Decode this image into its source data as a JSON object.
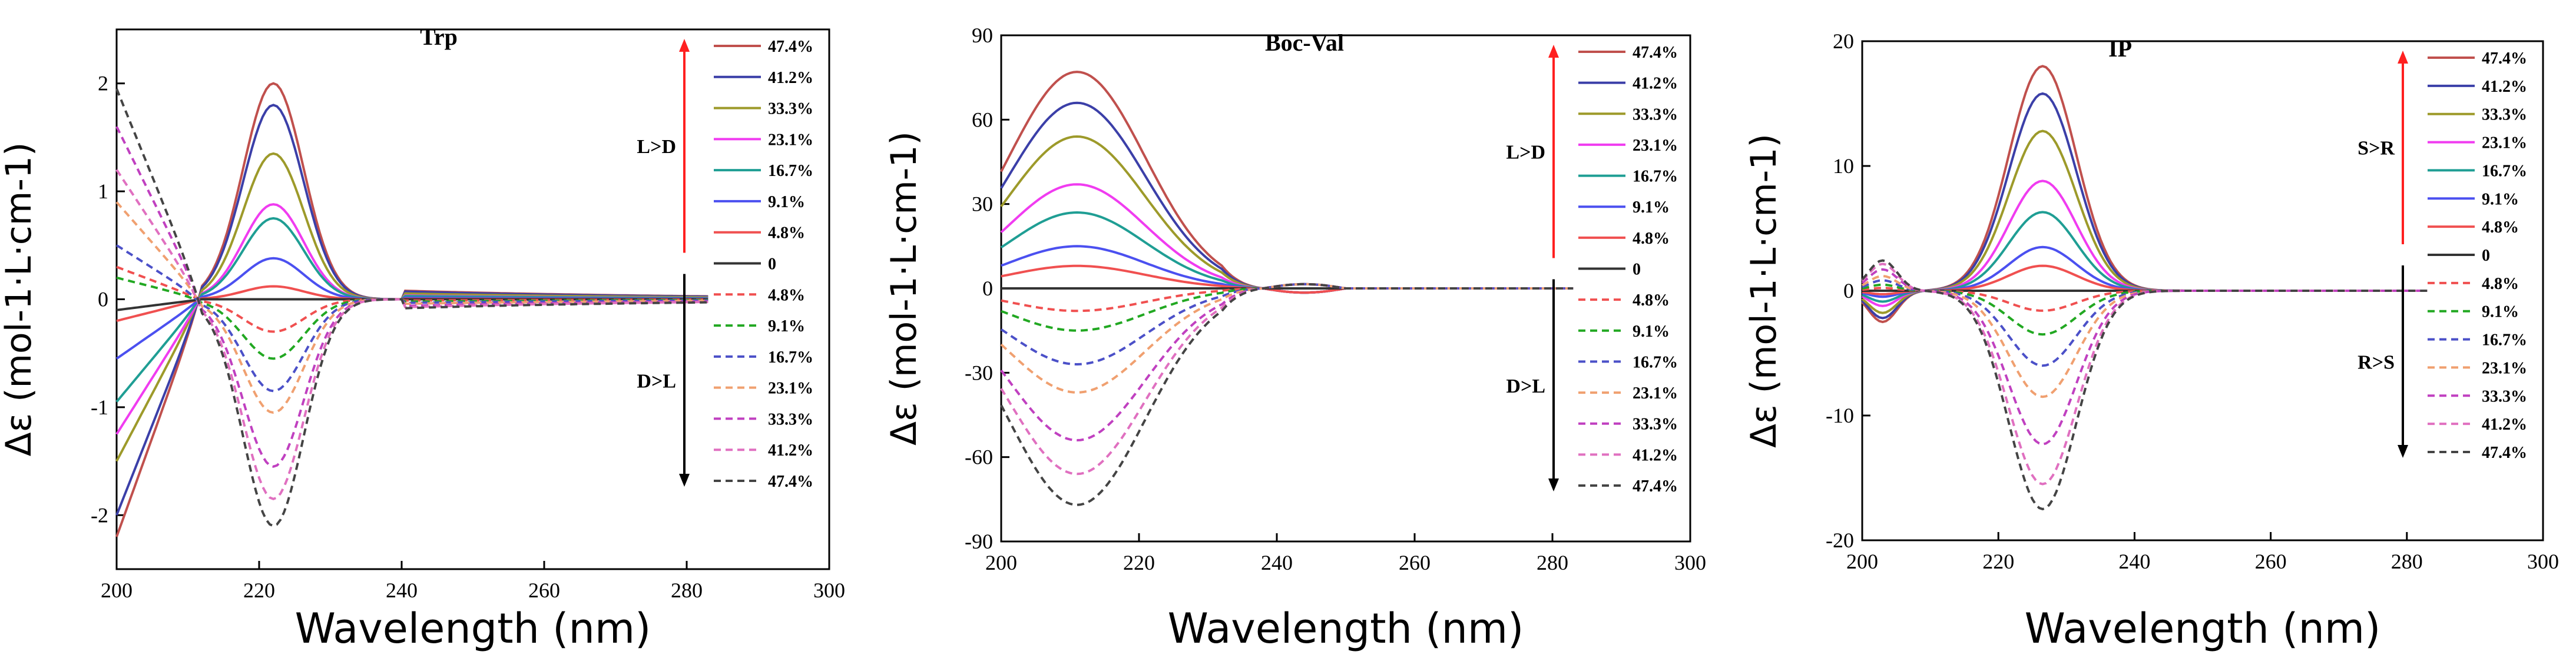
{
  "chart_data": [
    {
      "type": "line",
      "title": "Trp",
      "xlabel": "Wavelength (nm)",
      "ylabel": "Δε (mol-1·L·cm-1)",
      "xlim": [
        200,
        300
      ],
      "ylim": [
        -2.5,
        2.5
      ],
      "xticks": [
        200,
        220,
        240,
        260,
        280,
        300
      ],
      "xtick_labels": [
        "200",
        "220",
        "240",
        "260",
        "280",
        "300"
      ],
      "yticks": [
        -2,
        -1,
        0,
        1,
        2
      ],
      "ytick_labels": [
        "-2",
        "-1",
        "0",
        "1",
        "2"
      ],
      "arrow_up_label": "L>D",
      "arrow_down_label": "D>L",
      "peak_x": 222,
      "peak_width": 6,
      "x_end": 283,
      "legend": [
        "47.4%",
        "41.2%",
        "33.3%",
        "23.1%",
        "16.7%",
        "9.1%",
        "4.8%",
        "0",
        "4.8%",
        "9.1%",
        "16.7%",
        "23.1%",
        "33.3%",
        "41.2%",
        "47.4%"
      ],
      "series": [
        {
          "name": "47.4%",
          "style": "solid",
          "color": "#c0504d",
          "peak": 2.0,
          "start": -2.2
        },
        {
          "name": "41.2%",
          "style": "solid",
          "color": "#3b3fa8",
          "peak": 1.8,
          "start": -2.0
        },
        {
          "name": "33.3%",
          "style": "solid",
          "color": "#9d9a2a",
          "peak": 1.35,
          "start": -1.5
        },
        {
          "name": "23.1%",
          "style": "solid",
          "color": "#f03cf0",
          "peak": 0.88,
          "start": -1.25
        },
        {
          "name": "16.7%",
          "style": "solid",
          "color": "#1f9e94",
          "peak": 0.75,
          "start": -0.95
        },
        {
          "name": "9.1%",
          "style": "solid",
          "color": "#4b50f0",
          "peak": 0.38,
          "start": -0.55
        },
        {
          "name": "4.8%",
          "style": "solid",
          "color": "#f05050",
          "peak": 0.12,
          "start": -0.2
        },
        {
          "name": "0",
          "style": "solid",
          "color": "#333333",
          "peak": 0.0,
          "start": -0.1
        },
        {
          "name": "4.8%",
          "style": "dashed",
          "color": "#f05050",
          "peak": -0.3,
          "start": 0.3
        },
        {
          "name": "9.1%",
          "style": "dashed",
          "color": "#22a822",
          "peak": -0.55,
          "start": 0.2
        },
        {
          "name": "16.7%",
          "style": "dashed",
          "color": "#4b50c8",
          "peak": -0.85,
          "start": 0.5
        },
        {
          "name": "23.1%",
          "style": "dashed",
          "color": "#f0a070",
          "peak": -1.05,
          "start": 0.9
        },
        {
          "name": "33.3%",
          "style": "dashed",
          "color": "#c040c0",
          "peak": -1.55,
          "start": 1.6
        },
        {
          "name": "41.2%",
          "style": "dashed",
          "color": "#e070c0",
          "peak": -1.85,
          "start": 1.2
        },
        {
          "name": "47.4%",
          "style": "dashed",
          "color": "#444444",
          "peak": -2.1,
          "start": 1.95
        }
      ]
    },
    {
      "type": "line",
      "title": "Boc-Val",
      "xlabel": "Wavelength (nm)",
      "ylabel": "Δε (mol-1·L·cm-1)",
      "xlim": [
        200,
        300
      ],
      "ylim": [
        -90,
        90
      ],
      "xticks": [
        200,
        220,
        240,
        260,
        280,
        300
      ],
      "xtick_labels": [
        "200",
        "220",
        "240",
        "260",
        "280",
        "300"
      ],
      "yticks": [
        -90,
        -60,
        -30,
        0,
        30,
        60,
        90
      ],
      "ytick_labels": [
        "-90",
        "-60",
        "-30",
        "0",
        "30",
        "60",
        "90"
      ],
      "arrow_up_label": "L>D",
      "arrow_down_label": "D>L",
      "peak_x": 211,
      "peak_width": 10,
      "x_end": 283,
      "legend": [
        "47.4%",
        "41.2%",
        "33.3%",
        "23.1%",
        "16.7%",
        "9.1%",
        "4.8%",
        "0",
        "4.8%",
        "9.1%",
        "16.7%",
        "23.1%",
        "33.3%",
        "41.2%",
        "47.4%"
      ],
      "series": [
        {
          "name": "47.4%",
          "style": "solid",
          "color": "#c0504d",
          "peak": 77
        },
        {
          "name": "41.2%",
          "style": "solid",
          "color": "#3b3fa8",
          "peak": 66
        },
        {
          "name": "33.3%",
          "style": "solid",
          "color": "#9d9a2a",
          "peak": 54
        },
        {
          "name": "23.1%",
          "style": "solid",
          "color": "#f03cf0",
          "peak": 37
        },
        {
          "name": "16.7%",
          "style": "solid",
          "color": "#1f9e94",
          "peak": 27
        },
        {
          "name": "9.1%",
          "style": "solid",
          "color": "#4b50f0",
          "peak": 15
        },
        {
          "name": "4.8%",
          "style": "solid",
          "color": "#f05050",
          "peak": 8
        },
        {
          "name": "0",
          "style": "solid",
          "color": "#333333",
          "peak": 0
        },
        {
          "name": "4.8%",
          "style": "dashed",
          "color": "#f05050",
          "peak": -8
        },
        {
          "name": "9.1%",
          "style": "dashed",
          "color": "#22a822",
          "peak": -15
        },
        {
          "name": "16.7%",
          "style": "dashed",
          "color": "#4b50c8",
          "peak": -27
        },
        {
          "name": "23.1%",
          "style": "dashed",
          "color": "#f0a070",
          "peak": -37
        },
        {
          "name": "33.3%",
          "style": "dashed",
          "color": "#c040c0",
          "peak": -54
        },
        {
          "name": "41.2%",
          "style": "dashed",
          "color": "#e070c0",
          "peak": -66
        },
        {
          "name": "47.4%",
          "style": "dashed",
          "color": "#444444",
          "peak": -77
        }
      ]
    },
    {
      "type": "line",
      "title": "IP",
      "xlabel": "Wavelength (nm)",
      "ylabel": "Δε (mol-1·L·cm-1)",
      "xlim": [
        200,
        300
      ],
      "ylim": [
        -20,
        20
      ],
      "xticks": [
        200,
        220,
        240,
        260,
        280,
        300
      ],
      "xtick_labels": [
        "200",
        "220",
        "240",
        "260",
        "280",
        "300"
      ],
      "yticks": [
        -20,
        -10,
        0,
        10,
        20
      ],
      "ytick_labels": [
        "-20",
        "-10",
        "0",
        "10",
        "20"
      ],
      "arrow_up_label": "S>R",
      "arrow_down_label": "R>S",
      "peak_x": 226.5,
      "peak_width": 7,
      "x_end": 283,
      "legend": [
        "47.4%",
        "41.2%",
        "33.3%",
        "23.1%",
        "16.7%",
        "9.1%",
        "4.8%",
        "0",
        "4.8%",
        "9.1%",
        "16.7%",
        "23.1%",
        "33.3%",
        "41.2%",
        "47.4%"
      ],
      "series": [
        {
          "name": "47.4%",
          "style": "solid",
          "color": "#c0504d",
          "peak": 18
        },
        {
          "name": "41.2%",
          "style": "solid",
          "color": "#3b3fa8",
          "peak": 15.8
        },
        {
          "name": "33.3%",
          "style": "solid",
          "color": "#9d9a2a",
          "peak": 12.8
        },
        {
          "name": "23.1%",
          "style": "solid",
          "color": "#f03cf0",
          "peak": 8.8
        },
        {
          "name": "16.7%",
          "style": "solid",
          "color": "#1f9e94",
          "peak": 6.3
        },
        {
          "name": "9.1%",
          "style": "solid",
          "color": "#4b50f0",
          "peak": 3.5
        },
        {
          "name": "4.8%",
          "style": "solid",
          "color": "#f05050",
          "peak": 2.0
        },
        {
          "name": "0",
          "style": "solid",
          "color": "#333333",
          "peak": 0
        },
        {
          "name": "4.8%",
          "style": "dashed",
          "color": "#f05050",
          "peak": -1.6
        },
        {
          "name": "9.1%",
          "style": "dashed",
          "color": "#22a822",
          "peak": -3.5
        },
        {
          "name": "16.7%",
          "style": "dashed",
          "color": "#4b50c8",
          "peak": -6.0
        },
        {
          "name": "23.1%",
          "style": "dashed",
          "color": "#f0a070",
          "peak": -8.5
        },
        {
          "name": "33.3%",
          "style": "dashed",
          "color": "#c040c0",
          "peak": -12.3
        },
        {
          "name": "41.2%",
          "style": "dashed",
          "color": "#e070c0",
          "peak": -15.5
        },
        {
          "name": "47.4%",
          "style": "dashed",
          "color": "#444444",
          "peak": -17.5
        }
      ]
    }
  ],
  "colors": {
    "up_arrow": "#ff2020",
    "down_arrow": "#000000"
  }
}
